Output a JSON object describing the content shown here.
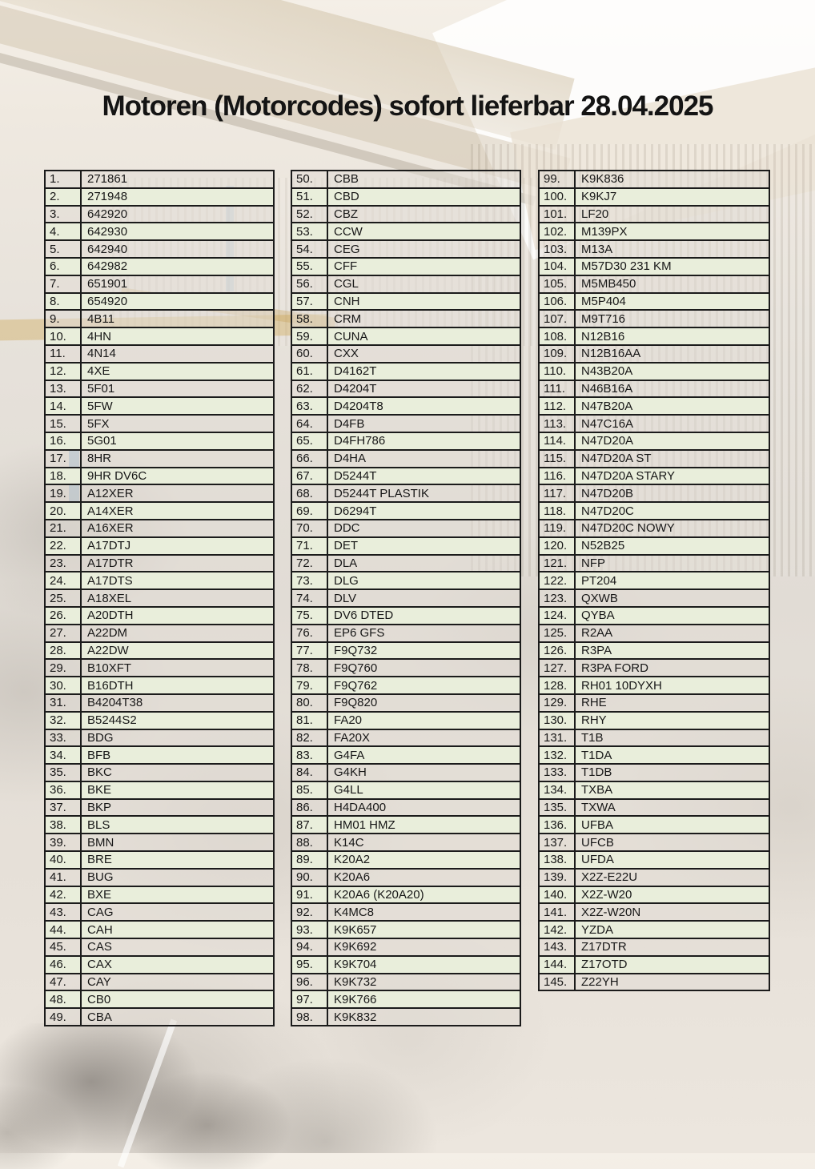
{
  "title": "Motoren (Motorcodes) sofort lieferbar 28.04.2025",
  "colors": {
    "row_green": "#e9eedb",
    "row_alt_tint": "rgba(226,221,214,0.55)",
    "table_border": "#1b1b1b",
    "title_text": "#141414"
  },
  "table": {
    "columns": [
      {
        "name": "column-1",
        "rows": [
          {
            "no": "1.",
            "code": "271861"
          },
          {
            "no": "2.",
            "code": "271948"
          },
          {
            "no": "3.",
            "code": "642920"
          },
          {
            "no": "4.",
            "code": "642930"
          },
          {
            "no": "5.",
            "code": "642940"
          },
          {
            "no": "6.",
            "code": "642982"
          },
          {
            "no": "7.",
            "code": "651901"
          },
          {
            "no": "8.",
            "code": "654920"
          },
          {
            "no": "9.",
            "code": "4B11"
          },
          {
            "no": "10.",
            "code": "4HN"
          },
          {
            "no": "11.",
            "code": "4N14"
          },
          {
            "no": "12.",
            "code": "4XE"
          },
          {
            "no": "13.",
            "code": "5F01"
          },
          {
            "no": "14.",
            "code": "5FW"
          },
          {
            "no": "15.",
            "code": "5FX"
          },
          {
            "no": "16.",
            "code": "5G01"
          },
          {
            "no": "17.",
            "code": "8HR"
          },
          {
            "no": "18.",
            "code": "9HR DV6C"
          },
          {
            "no": "19.",
            "code": "A12XER"
          },
          {
            "no": "20.",
            "code": "A14XER"
          },
          {
            "no": "21.",
            "code": "A16XER"
          },
          {
            "no": "22.",
            "code": "A17DTJ"
          },
          {
            "no": "23.",
            "code": "A17DTR"
          },
          {
            "no": "24.",
            "code": "A17DTS"
          },
          {
            "no": "25.",
            "code": "A18XEL"
          },
          {
            "no": "26.",
            "code": "A20DTH"
          },
          {
            "no": "27.",
            "code": "A22DM"
          },
          {
            "no": "28.",
            "code": "A22DW"
          },
          {
            "no": "29.",
            "code": "B10XFT"
          },
          {
            "no": "30.",
            "code": "B16DTH"
          },
          {
            "no": "31.",
            "code": "B4204T38"
          },
          {
            "no": "32.",
            "code": "B5244S2"
          },
          {
            "no": "33.",
            "code": "BDG"
          },
          {
            "no": "34.",
            "code": "BFB"
          },
          {
            "no": "35.",
            "code": "BKC"
          },
          {
            "no": "36.",
            "code": "BKE"
          },
          {
            "no": "37.",
            "code": "BKP"
          },
          {
            "no": "38.",
            "code": "BLS"
          },
          {
            "no": "39.",
            "code": "BMN"
          },
          {
            "no": "40.",
            "code": "BRE"
          },
          {
            "no": "41.",
            "code": "BUG"
          },
          {
            "no": "42.",
            "code": "BXE"
          },
          {
            "no": "43.",
            "code": "CAG"
          },
          {
            "no": "44.",
            "code": "CAH"
          },
          {
            "no": "45.",
            "code": "CAS"
          },
          {
            "no": "46.",
            "code": "CAX"
          },
          {
            "no": "47.",
            "code": "CAY"
          },
          {
            "no": "48.",
            "code": "CB0"
          },
          {
            "no": "49.",
            "code": "CBA"
          }
        ]
      },
      {
        "name": "column-2",
        "rows": [
          {
            "no": "50.",
            "code": "CBB"
          },
          {
            "no": "51.",
            "code": "CBD"
          },
          {
            "no": "52.",
            "code": "CBZ"
          },
          {
            "no": "53.",
            "code": "CCW"
          },
          {
            "no": "54.",
            "code": "CEG"
          },
          {
            "no": "55.",
            "code": "CFF"
          },
          {
            "no": "56.",
            "code": "CGL"
          },
          {
            "no": "57.",
            "code": "CNH"
          },
          {
            "no": "58.",
            "code": "CRM"
          },
          {
            "no": "59.",
            "code": "CUNA"
          },
          {
            "no": "60.",
            "code": "CXX"
          },
          {
            "no": "61.",
            "code": "D4162T"
          },
          {
            "no": "62.",
            "code": "D4204T"
          },
          {
            "no": "63.",
            "code": "D4204T8"
          },
          {
            "no": "64.",
            "code": "D4FB"
          },
          {
            "no": "65.",
            "code": "D4FH786"
          },
          {
            "no": "66.",
            "code": "D4HA"
          },
          {
            "no": "67.",
            "code": "D5244T"
          },
          {
            "no": "68.",
            "code": "D5244T PLASTIK"
          },
          {
            "no": "69.",
            "code": "D6294T"
          },
          {
            "no": "70.",
            "code": "DDC"
          },
          {
            "no": "71.",
            "code": "DET"
          },
          {
            "no": "72.",
            "code": "DLA"
          },
          {
            "no": "73.",
            "code": "DLG"
          },
          {
            "no": "74.",
            "code": "DLV"
          },
          {
            "no": "75.",
            "code": "DV6 DTED"
          },
          {
            "no": "76.",
            "code": "EP6 GFS"
          },
          {
            "no": "77.",
            "code": "F9Q732"
          },
          {
            "no": "78.",
            "code": "F9Q760"
          },
          {
            "no": "79.",
            "code": "F9Q762"
          },
          {
            "no": "80.",
            "code": "F9Q820"
          },
          {
            "no": "81.",
            "code": "FA20"
          },
          {
            "no": "82.",
            "code": "FA20X"
          },
          {
            "no": "83.",
            "code": "G4FA"
          },
          {
            "no": "84.",
            "code": "G4KH"
          },
          {
            "no": "85.",
            "code": "G4LL"
          },
          {
            "no": "86.",
            "code": "H4DA400"
          },
          {
            "no": "87.",
            "code": "HM01 HMZ"
          },
          {
            "no": "88.",
            "code": "K14C"
          },
          {
            "no": "89.",
            "code": "K20A2"
          },
          {
            "no": "90.",
            "code": "K20A6"
          },
          {
            "no": "91.",
            "code": "K20A6 (K20A20)"
          },
          {
            "no": "92.",
            "code": "K4MC8"
          },
          {
            "no": "93.",
            "code": "K9K657"
          },
          {
            "no": "94.",
            "code": "K9K692"
          },
          {
            "no": "95.",
            "code": "K9K704"
          },
          {
            "no": "96.",
            "code": "K9K732"
          },
          {
            "no": "97.",
            "code": "K9K766"
          },
          {
            "no": "98.",
            "code": "K9K832"
          }
        ]
      },
      {
        "name": "column-3",
        "rows": [
          {
            "no": "99.",
            "code": "K9K836"
          },
          {
            "no": "100.",
            "code": "K9KJ7"
          },
          {
            "no": "101.",
            "code": "LF20"
          },
          {
            "no": "102.",
            "code": "M139PX"
          },
          {
            "no": "103.",
            "code": "M13A"
          },
          {
            "no": "104.",
            "code": "M57D30 231 KM"
          },
          {
            "no": "105.",
            "code": "M5MB450"
          },
          {
            "no": "106.",
            "code": "M5P404"
          },
          {
            "no": "107.",
            "code": "M9T716"
          },
          {
            "no": "108.",
            "code": "N12B16"
          },
          {
            "no": "109.",
            "code": "N12B16AA"
          },
          {
            "no": "110.",
            "code": "N43B20A"
          },
          {
            "no": "111.",
            "code": "N46B16A"
          },
          {
            "no": "112.",
            "code": "N47B20A"
          },
          {
            "no": "113.",
            "code": "N47C16A"
          },
          {
            "no": "114.",
            "code": "N47D20A"
          },
          {
            "no": "115.",
            "code": "N47D20A ST"
          },
          {
            "no": "116.",
            "code": "N47D20A STARY"
          },
          {
            "no": "117.",
            "code": "N47D20B"
          },
          {
            "no": "118.",
            "code": "N47D20C"
          },
          {
            "no": "119.",
            "code": "N47D20C NOWY"
          },
          {
            "no": "120.",
            "code": "N52B25"
          },
          {
            "no": "121.",
            "code": "NFP"
          },
          {
            "no": "122.",
            "code": "PT204"
          },
          {
            "no": "123.",
            "code": "QXWB"
          },
          {
            "no": "124.",
            "code": "QYBA"
          },
          {
            "no": "125.",
            "code": "R2AA"
          },
          {
            "no": "126.",
            "code": "R3PA"
          },
          {
            "no": "127.",
            "code": "R3PA FORD"
          },
          {
            "no": "128.",
            "code": "RH01 10DYXH"
          },
          {
            "no": "129.",
            "code": "RHE"
          },
          {
            "no": "130.",
            "code": "RHY"
          },
          {
            "no": "131.",
            "code": "T1B"
          },
          {
            "no": "132.",
            "code": "T1DA"
          },
          {
            "no": "133.",
            "code": "T1DB"
          },
          {
            "no": "134.",
            "code": "TXBA"
          },
          {
            "no": "135.",
            "code": "TXWA"
          },
          {
            "no": "136.",
            "code": "UFBA"
          },
          {
            "no": "137.",
            "code": "UFCB"
          },
          {
            "no": "138.",
            "code": "UFDA"
          },
          {
            "no": "139.",
            "code": "X2Z-E22U"
          },
          {
            "no": "140.",
            "code": "X2Z-W20"
          },
          {
            "no": "141.",
            "code": "X2Z-W20N"
          },
          {
            "no": "142.",
            "code": "YZDA"
          },
          {
            "no": "143.",
            "code": "Z17DTR"
          },
          {
            "no": "144.",
            "code": "Z17OTD"
          },
          {
            "no": "145.",
            "code": "Z22YH"
          }
        ]
      }
    ]
  }
}
